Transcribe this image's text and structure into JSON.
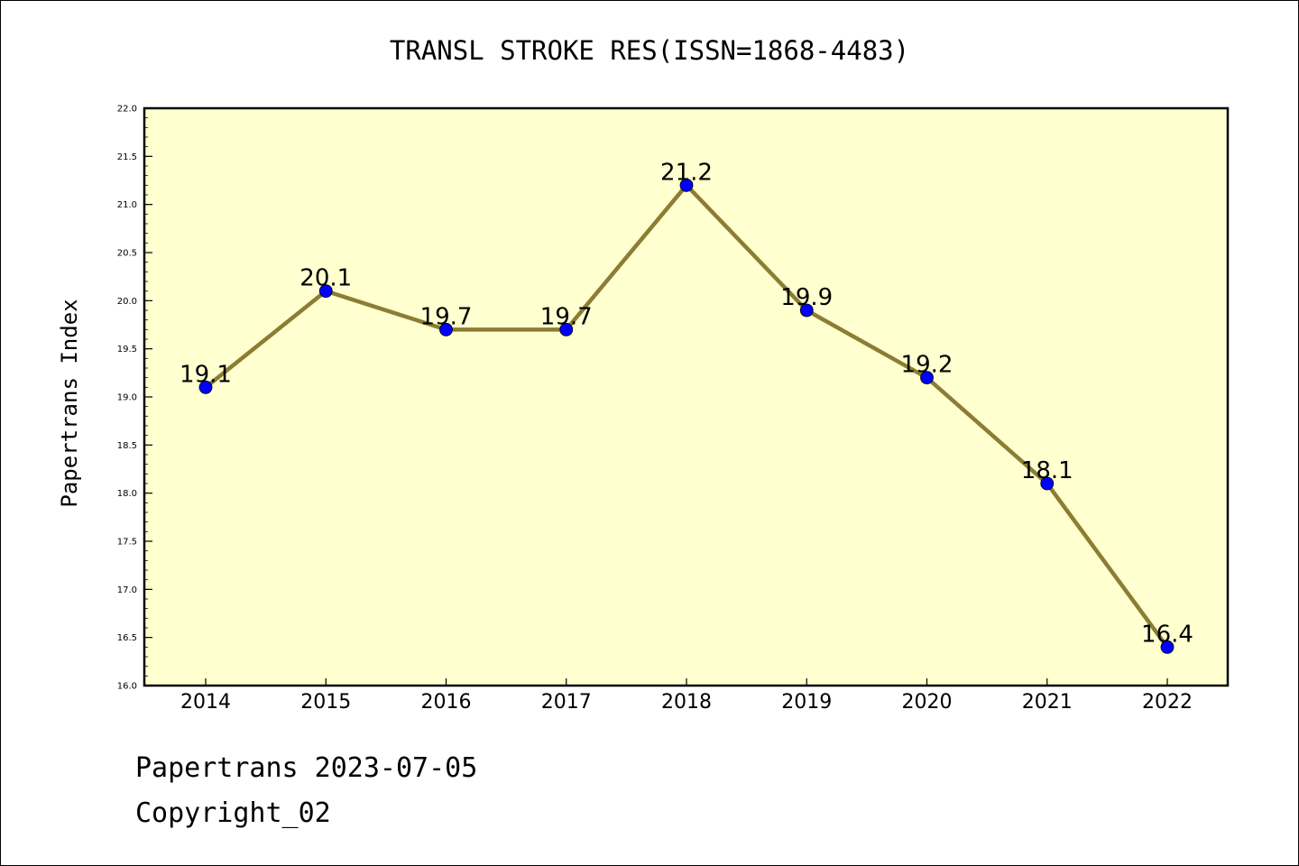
{
  "chart_data": {
    "type": "line",
    "title": "TRANSL STROKE RES(ISSN=1868-4483)",
    "xlabel": "",
    "ylabel": "Papertrans Index",
    "categories": [
      "2014",
      "2015",
      "2016",
      "2017",
      "2018",
      "2019",
      "2020",
      "2021",
      "2022"
    ],
    "series": [
      {
        "values": [
          19.1,
          20.1,
          19.7,
          19.7,
          21.2,
          19.9,
          19.2,
          18.1,
          16.4
        ],
        "labels": [
          "19.1",
          "20.1",
          "19.7",
          "19.7",
          "21.2",
          "19.9",
          "19.2",
          "18.1",
          "16.4"
        ]
      }
    ],
    "ylim": [
      16.0,
      22.0
    ],
    "yticks": [
      "16.0",
      "16.5",
      "17.0",
      "17.5",
      "18.0",
      "18.5",
      "19.0",
      "19.5",
      "20.0",
      "20.5",
      "21.0",
      "21.5",
      "22.0"
    ],
    "grid": false,
    "legend": "none",
    "colors": {
      "plot_background": "#ffffd0",
      "line": "#8b7d32",
      "marker": "#0000ff"
    }
  },
  "footer": {
    "date_line": "Papertrans 2023-07-05",
    "copyright_line": "Copyright_02"
  }
}
